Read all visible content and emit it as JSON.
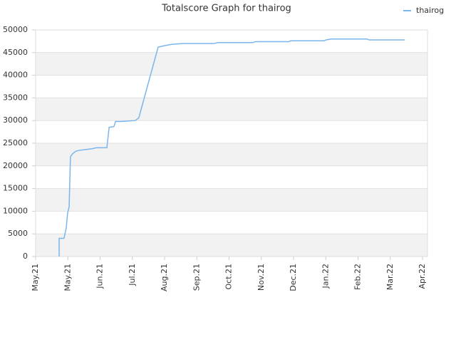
{
  "chart_data": {
    "type": "line",
    "title": "Totalscore Graph for thairog",
    "x": [
      0.73,
      0.73,
      0.88,
      0.95,
      0.99,
      1.04,
      1.06,
      1.08,
      1.15,
      1.24,
      1.33,
      1.55,
      1.77,
      1.88,
      2.21,
      2.28,
      2.43,
      2.48,
      2.65,
      3.09,
      3.2,
      3.8,
      3.98,
      4.2,
      4.53,
      5.52,
      5.66,
      6.74,
      6.81,
      7.85,
      7.91,
      8.95,
      9.01,
      9.17,
      10.28,
      10.34,
      11.45
    ],
    "series": [
      {
        "name": "thairog",
        "color": "#7cb5ec",
        "values": [
          0,
          4000,
          4000,
          6300,
          9500,
          11000,
          16500,
          22000,
          22700,
          23200,
          23400,
          23600,
          23800,
          24000,
          24000,
          28500,
          28700,
          29800,
          29800,
          30000,
          30600,
          46200,
          46500,
          46800,
          47000,
          47000,
          47200,
          47200,
          47400,
          47400,
          47600,
          47600,
          47800,
          48000,
          48000,
          47800,
          47800
        ]
      }
    ],
    "xlim": [
      0,
      12
    ],
    "xticks": [
      {
        "value": 0,
        "label": "May.21"
      },
      {
        "value": 1,
        "label": "May.21"
      },
      {
        "value": 2,
        "label": "Jun.21"
      },
      {
        "value": 3,
        "label": "Jul.21"
      },
      {
        "value": 4,
        "label": "Aug.21"
      },
      {
        "value": 5,
        "label": "Sep.21"
      },
      {
        "value": 6,
        "label": "Oct.21"
      },
      {
        "value": 7,
        "label": "Nov.21"
      },
      {
        "value": 8,
        "label": "Dec.21"
      },
      {
        "value": 9,
        "label": "Jan.22"
      },
      {
        "value": 10,
        "label": "Feb.22"
      },
      {
        "value": 11,
        "label": "Mar.22"
      },
      {
        "value": 12,
        "label": "Apr.22"
      }
    ],
    "ylim": [
      0,
      50000
    ],
    "yticks": [
      0,
      5000,
      10000,
      15000,
      20000,
      25000,
      30000,
      35000,
      40000,
      45000,
      50000
    ],
    "grid": true,
    "legend": "top-right"
  }
}
